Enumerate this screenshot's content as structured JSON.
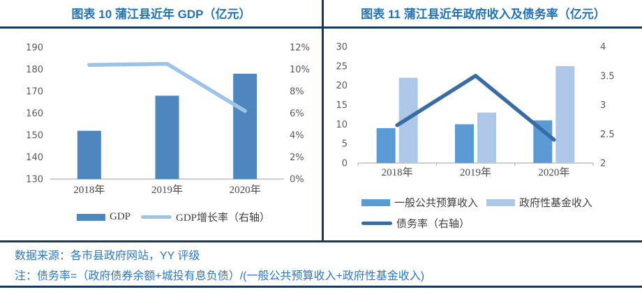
{
  "colors": {
    "title": "#2173B8",
    "rule": "#17375E",
    "note_text": "#2B78C2",
    "axis_text": "#595959",
    "axis_line": "#BFBFBF"
  },
  "footer": {
    "source": "数据来源：各市县政府网站，YY 评级",
    "note": "注：债务率=（政府债券余额+城投有息负债）/(一般公共预算收入+政府性基金收入)"
  },
  "chart_data": [
    {
      "type": "bar+line combo",
      "title": "图表 10 蒲江县近年 GDP（亿元）",
      "categories": [
        "2018年",
        "2019年",
        "2020年"
      ],
      "bar_series": [
        {
          "name": "GDP",
          "color": "#4E87BE",
          "axis": "left",
          "values": [
            152,
            168,
            178
          ]
        }
      ],
      "line_series": [
        {
          "name": "GDP增长率（右轴）",
          "color": "#9DC3E6",
          "axis": "right",
          "values": [
            10.4,
            10.5,
            6.2
          ]
        }
      ],
      "left_axis": {
        "min": 130,
        "max": 190,
        "step": 10,
        "suffix": ""
      },
      "right_axis": {
        "min": 0,
        "max": 12,
        "step": 2,
        "suffix": "%"
      },
      "grid": false,
      "legend_position": "bottom"
    },
    {
      "type": "bar+line combo",
      "title": "图表 11 蒲江县近年政府收入及债务率（亿元）",
      "categories": [
        "2018年",
        "2019年",
        "2020年"
      ],
      "bar_series": [
        {
          "name": "一般公共预算收入",
          "color": "#5B9AD5",
          "axis": "left",
          "values": [
            9,
            10,
            11
          ]
        },
        {
          "name": "政府性基金收入",
          "color": "#AEC6E7",
          "axis": "left",
          "values": [
            22,
            13,
            25
          ]
        }
      ],
      "line_series": [
        {
          "name": "债务率（右轴）",
          "color": "#3A6CA4",
          "axis": "right",
          "values": [
            2.65,
            3.5,
            2.4
          ]
        }
      ],
      "left_axis": {
        "min": 0,
        "max": 30,
        "step": 5,
        "suffix": ""
      },
      "right_axis": {
        "min": 2,
        "max": 4,
        "step": 0.5,
        "suffix": ""
      },
      "grid": false,
      "legend_position": "bottom"
    }
  ]
}
